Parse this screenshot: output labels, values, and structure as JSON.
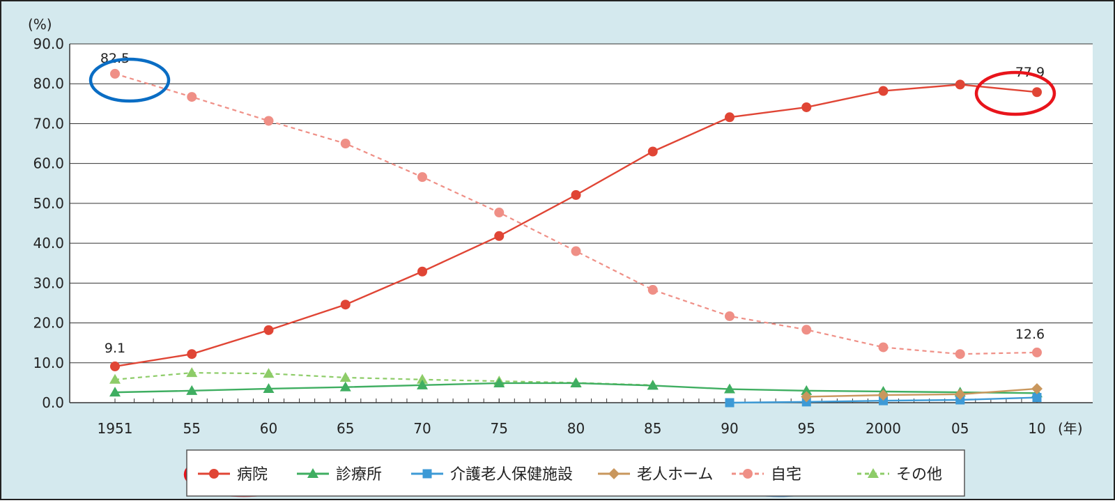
{
  "chart_data": {
    "type": "line",
    "y_unit_label": "(%)",
    "x_unit_label": "(年)",
    "ylim": [
      0,
      90
    ],
    "yticks": [
      "0.0",
      "10.0",
      "20.0",
      "30.0",
      "40.0",
      "50.0",
      "60.0",
      "70.0",
      "80.0",
      "90.0"
    ],
    "categories": [
      "1951",
      "55",
      "60",
      "65",
      "70",
      "75",
      "80",
      "85",
      "90",
      "95",
      "2000",
      "05",
      "10"
    ],
    "x_years": [
      1951,
      1955,
      1960,
      1965,
      1970,
      1975,
      1980,
      1985,
      1990,
      1995,
      2000,
      2005,
      2010
    ],
    "grid": "horizontal",
    "legend_position": "bottom",
    "series": [
      {
        "name": "病院",
        "color": "#e04535",
        "marker": "circle",
        "dash": "solid",
        "x": [
          1951,
          1955,
          1960,
          1965,
          1970,
          1975,
          1980,
          1985,
          1990,
          1995,
          2000,
          2005,
          2010
        ],
        "values": [
          9.1,
          12.2,
          18.2,
          24.6,
          32.9,
          41.8,
          52.1,
          63.0,
          71.6,
          74.1,
          78.2,
          79.8,
          77.9
        ]
      },
      {
        "name": "診療所",
        "color": "#3fae61",
        "marker": "triangle",
        "dash": "solid",
        "x": [
          1951,
          1955,
          1960,
          1965,
          1970,
          1975,
          1980,
          1985,
          1990,
          1995,
          2000,
          2005,
          2010
        ],
        "values": [
          2.6,
          3.0,
          3.5,
          3.9,
          4.4,
          4.9,
          4.9,
          4.3,
          3.4,
          3.0,
          2.8,
          2.6,
          2.4
        ]
      },
      {
        "name": "介護老人保健施設",
        "color": "#3d9ad6",
        "marker": "square",
        "dash": "solid",
        "x": [
          1990,
          1995,
          2000,
          2005,
          2010
        ],
        "values": [
          0.0,
          0.2,
          0.5,
          0.7,
          1.3
        ]
      },
      {
        "name": "老人ホーム",
        "color": "#c9975d",
        "marker": "diamond",
        "dash": "solid",
        "x": [
          1995,
          2000,
          2005,
          2010
        ],
        "values": [
          1.5,
          1.9,
          2.1,
          3.5
        ]
      },
      {
        "name": "自宅",
        "color": "#ef8f86",
        "marker": "circle",
        "dash": "dashed",
        "x": [
          1951,
          1955,
          1960,
          1965,
          1970,
          1975,
          1980,
          1985,
          1990,
          1995,
          2000,
          2005,
          2010
        ],
        "values": [
          82.5,
          76.7,
          70.7,
          65.0,
          56.6,
          47.7,
          38.0,
          28.3,
          21.7,
          18.3,
          13.9,
          12.2,
          12.6
        ]
      },
      {
        "name": "その他",
        "color": "#8dcc68",
        "marker": "triangle",
        "dash": "dashed",
        "x": [
          1951,
          1955,
          1960,
          1965,
          1970,
          1975,
          1980,
          1985
        ],
        "values": [
          5.8,
          7.5,
          7.3,
          6.3,
          5.8,
          5.4,
          5.0,
          4.4
        ]
      }
    ],
    "annotations": [
      {
        "text": "82.5",
        "series": "自宅",
        "x": 1951,
        "y": 82.5
      },
      {
        "text": "9.1",
        "series": "病院",
        "x": 1951,
        "y": 9.1
      },
      {
        "text": "77.9",
        "series": "病院",
        "x": 2010,
        "y": 77.9
      },
      {
        "text": "12.6",
        "series": "自宅",
        "x": 2010,
        "y": 12.6
      }
    ],
    "highlights": [
      {
        "shape": "ellipse",
        "color": "#0a6dc4",
        "target": "自宅 1951 point"
      },
      {
        "shape": "ellipse",
        "color": "#e8141b",
        "target": "病院 2010 point"
      },
      {
        "shape": "ellipse",
        "color": "#e8141b",
        "target": "legend 病院"
      },
      {
        "shape": "ellipse",
        "color": "#0a6dc4",
        "target": "legend 自宅"
      }
    ],
    "colors": {
      "background": "#d4e9ee",
      "plot_background": "#ffffff",
      "axis": "#333333",
      "grid": "#333333"
    }
  }
}
